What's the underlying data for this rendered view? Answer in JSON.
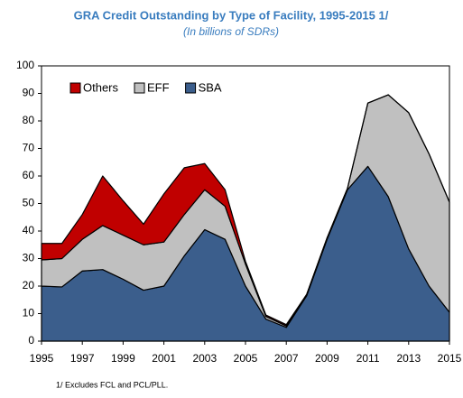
{
  "chart_data": {
    "type": "stacked_area",
    "title": "GRA Credit Outstanding by Type of Facility, 1995-2015 1/",
    "subtitle": "(In billions of SDRs)",
    "footnote": "1/  Excludes FCL and PCL/PLL.",
    "x": [
      1995,
      1996,
      1997,
      1998,
      1999,
      2000,
      2001,
      2002,
      2003,
      2004,
      2005,
      2006,
      2007,
      2008,
      2009,
      2010,
      2011,
      2012,
      2013,
      2014,
      2015
    ],
    "series": [
      {
        "name": "SBA",
        "color": "#3b5e8c",
        "values": [
          20,
          19.7,
          25.5,
          26,
          22.5,
          18.5,
          20,
          31,
          40.5,
          37,
          20,
          8,
          5,
          16.5,
          37,
          55,
          63.5,
          52.5,
          33.5,
          20,
          10.5
        ]
      },
      {
        "name": "EFF",
        "color": "#c0c0c0",
        "values": [
          9.5,
          10.3,
          11.5,
          16,
          16,
          16.5,
          16,
          15,
          14.5,
          12,
          8,
          1,
          0.5,
          0.5,
          0.5,
          0.5,
          23,
          37,
          49.5,
          48,
          40
        ]
      },
      {
        "name": "Others",
        "color": "#c00000",
        "values": [
          6,
          5.5,
          9,
          18,
          12.5,
          7.5,
          17.5,
          17,
          9.5,
          6,
          1,
          0.5,
          0.5,
          0,
          0,
          0,
          0,
          0,
          0,
          0,
          0
        ]
      }
    ],
    "xlim": [
      1995,
      2015
    ],
    "xticks": [
      1995,
      1997,
      1999,
      2001,
      2003,
      2005,
      2007,
      2009,
      2011,
      2013,
      2015
    ],
    "ylim": [
      0,
      100
    ],
    "yticks": [
      0,
      10,
      20,
      30,
      40,
      50,
      60,
      70,
      80,
      90,
      100
    ],
    "legend": "top-left"
  }
}
